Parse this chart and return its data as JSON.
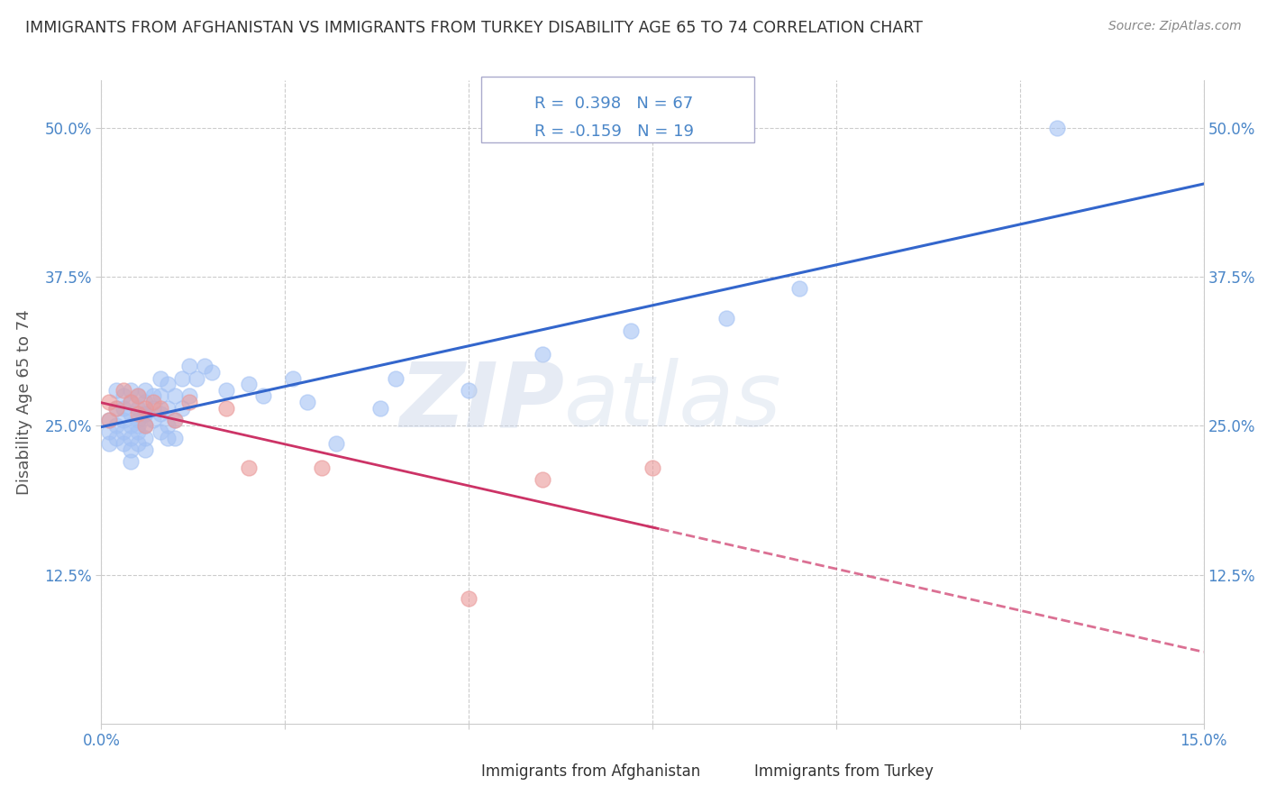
{
  "title": "IMMIGRANTS FROM AFGHANISTAN VS IMMIGRANTS FROM TURKEY DISABILITY AGE 65 TO 74 CORRELATION CHART",
  "source": "Source: ZipAtlas.com",
  "ylabel": "Disability Age 65 to 74",
  "xlim": [
    0.0,
    0.15
  ],
  "ylim": [
    0.0,
    0.54
  ],
  "xticks": [
    0.0,
    0.025,
    0.05,
    0.075,
    0.1,
    0.125,
    0.15
  ],
  "xticklabels": [
    "0.0%",
    "",
    "",
    "",
    "",
    "",
    "15.0%"
  ],
  "yticks": [
    0.125,
    0.25,
    0.375,
    0.5
  ],
  "yticklabels": [
    "12.5%",
    "25.0%",
    "37.5%",
    "50.0%"
  ],
  "afghanistan_color": "#a4c2f4",
  "turkey_color": "#ea9999",
  "afghanistan_R": 0.398,
  "afghanistan_N": 67,
  "turkey_R": -0.159,
  "turkey_N": 19,
  "blue_line_color": "#3366cc",
  "pink_line_color": "#cc3366",
  "afghanistan_x": [
    0.001,
    0.001,
    0.001,
    0.002,
    0.002,
    0.002,
    0.002,
    0.003,
    0.003,
    0.003,
    0.003,
    0.003,
    0.004,
    0.004,
    0.004,
    0.004,
    0.004,
    0.004,
    0.004,
    0.005,
    0.005,
    0.005,
    0.005,
    0.005,
    0.005,
    0.006,
    0.006,
    0.006,
    0.006,
    0.006,
    0.006,
    0.006,
    0.007,
    0.007,
    0.007,
    0.008,
    0.008,
    0.008,
    0.008,
    0.009,
    0.009,
    0.009,
    0.009,
    0.01,
    0.01,
    0.01,
    0.011,
    0.011,
    0.012,
    0.012,
    0.013,
    0.014,
    0.015,
    0.017,
    0.02,
    0.022,
    0.026,
    0.028,
    0.032,
    0.038,
    0.04,
    0.05,
    0.06,
    0.072,
    0.085,
    0.095,
    0.13
  ],
  "afghanistan_y": [
    0.235,
    0.245,
    0.255,
    0.265,
    0.25,
    0.24,
    0.28,
    0.235,
    0.245,
    0.255,
    0.265,
    0.275,
    0.24,
    0.25,
    0.26,
    0.27,
    0.28,
    0.23,
    0.22,
    0.255,
    0.265,
    0.275,
    0.245,
    0.235,
    0.25,
    0.27,
    0.26,
    0.28,
    0.25,
    0.24,
    0.26,
    0.23,
    0.275,
    0.265,
    0.255,
    0.29,
    0.275,
    0.26,
    0.245,
    0.285,
    0.265,
    0.25,
    0.24,
    0.275,
    0.255,
    0.24,
    0.29,
    0.265,
    0.3,
    0.275,
    0.29,
    0.3,
    0.295,
    0.28,
    0.285,
    0.275,
    0.29,
    0.27,
    0.235,
    0.265,
    0.29,
    0.28,
    0.31,
    0.33,
    0.34,
    0.365,
    0.5
  ],
  "turkey_x": [
    0.001,
    0.001,
    0.002,
    0.003,
    0.004,
    0.005,
    0.005,
    0.006,
    0.006,
    0.007,
    0.008,
    0.01,
    0.012,
    0.017,
    0.02,
    0.03,
    0.05,
    0.06,
    0.075
  ],
  "turkey_y": [
    0.255,
    0.27,
    0.265,
    0.28,
    0.27,
    0.26,
    0.275,
    0.265,
    0.25,
    0.27,
    0.265,
    0.255,
    0.27,
    0.265,
    0.215,
    0.215,
    0.105,
    0.205,
    0.215
  ],
  "watermark_zip": "ZIP",
  "watermark_atlas": "atlas",
  "background_color": "#ffffff",
  "grid_color": "#cccccc",
  "title_color": "#333333",
  "axis_label_color": "#555555",
  "tick_color": "#4a86c8",
  "legend_border_color": "#aaaacc"
}
